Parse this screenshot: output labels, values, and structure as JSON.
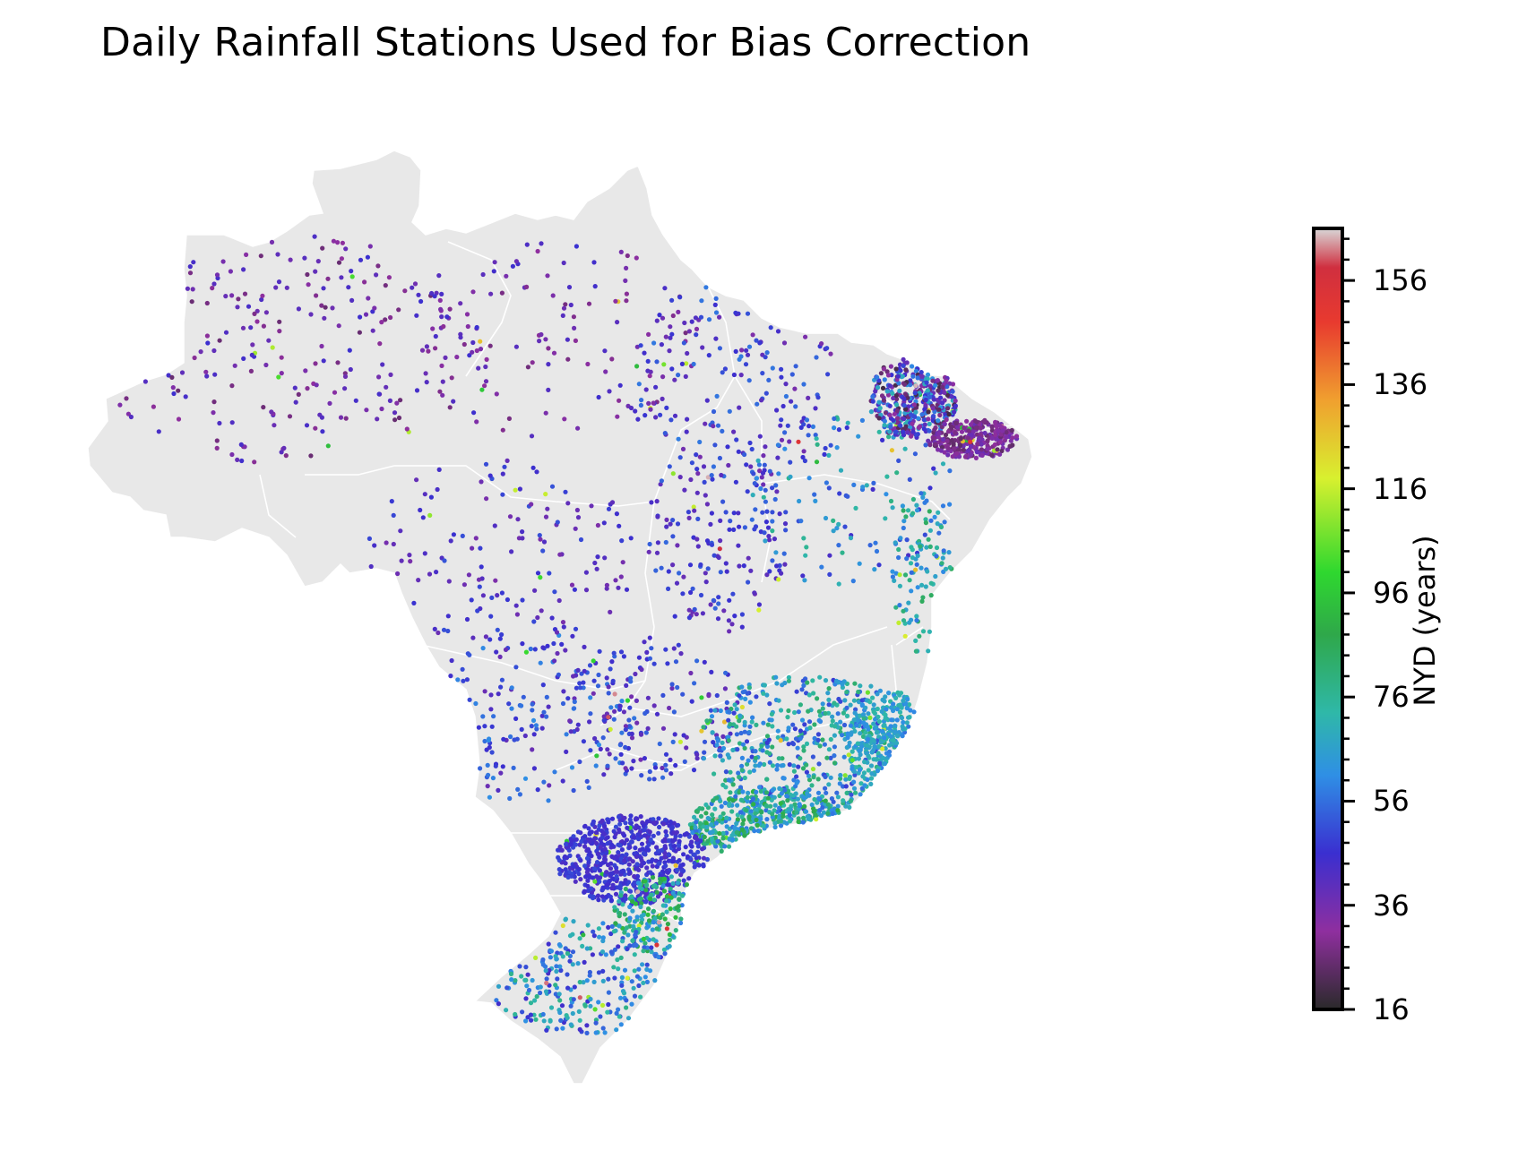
{
  "title": "Daily Rainfall Stations Used for Bias Correction",
  "colorbar": {
    "label": "NYD (years)",
    "min": 16,
    "max": 166,
    "ticks": [
      16,
      36,
      56,
      76,
      96,
      116,
      136,
      156
    ],
    "minor_step": 4,
    "colormap": [
      "#2a2a2a",
      "#8f2f9f",
      "#3a2fd0",
      "#2f8fe5",
      "#2fb8a8",
      "#2fa84a",
      "#2fd82f",
      "#d8f02f",
      "#f0a02f",
      "#e83a2f",
      "#d02f3f",
      "#d8d8d8"
    ],
    "colormap_stops": [
      0,
      0.1,
      0.2,
      0.3,
      0.38,
      0.48,
      0.56,
      0.68,
      0.78,
      0.88,
      0.95,
      1
    ]
  },
  "colors": {
    "land": "#e8e8e8",
    "state_borders": "#ffffff",
    "frame": "#000000"
  }
}
